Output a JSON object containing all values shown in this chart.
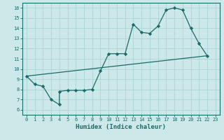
{
  "xlabel": "Humidex (Indice chaleur)",
  "ylabel": "",
  "bg_color": "#cce8e8",
  "line_color": "#1a6b6b",
  "grid_color": "#aad4d4",
  "xlim": [
    -0.5,
    23.5
  ],
  "ylim": [
    5.5,
    16.5
  ],
  "xticks": [
    0,
    1,
    2,
    3,
    4,
    5,
    6,
    7,
    8,
    9,
    10,
    11,
    12,
    13,
    14,
    15,
    16,
    17,
    18,
    19,
    20,
    21,
    22,
    23
  ],
  "yticks": [
    6,
    7,
    8,
    9,
    10,
    11,
    12,
    13,
    14,
    15,
    16
  ],
  "upper_line": [
    [
      0,
      9.3
    ],
    [
      1,
      8.5
    ],
    [
      2,
      8.3
    ],
    [
      3,
      7.0
    ],
    [
      4,
      6.5
    ],
    [
      4,
      7.8
    ],
    [
      5,
      7.9
    ],
    [
      6,
      7.9
    ],
    [
      7,
      7.9
    ],
    [
      8,
      8.0
    ],
    [
      9,
      9.8
    ],
    [
      10,
      11.5
    ],
    [
      11,
      11.5
    ],
    [
      12,
      11.5
    ],
    [
      13,
      14.4
    ],
    [
      14,
      13.6
    ],
    [
      15,
      13.5
    ],
    [
      16,
      14.2
    ],
    [
      17,
      15.8
    ],
    [
      18,
      16.0
    ],
    [
      19,
      15.8
    ],
    [
      20,
      14.0
    ],
    [
      21,
      12.5
    ],
    [
      22,
      11.3
    ]
  ],
  "lower_line": [
    [
      0,
      9.3
    ],
    [
      22,
      11.3
    ]
  ],
  "marker": "D",
  "marker_size": 2.2,
  "linewidth": 0.9,
  "tick_fontsize": 5.0,
  "xlabel_fontsize": 6.5
}
